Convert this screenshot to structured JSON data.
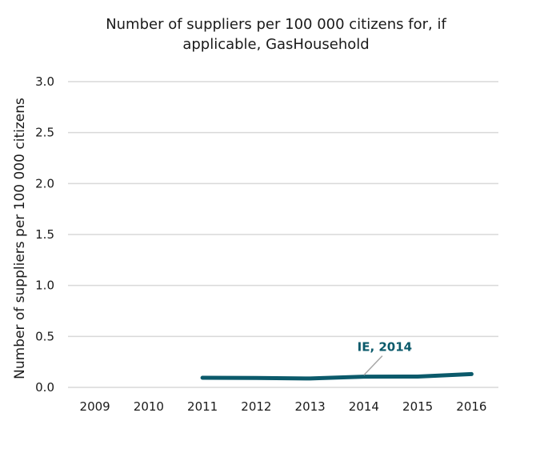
{
  "chart_data": {
    "type": "line",
    "title_lines": [
      "Number of suppliers per 100 000 citizens for, if",
      "applicable, GasHousehold"
    ],
    "xlabel": "",
    "ylabel": "Number of suppliers per 100 000 citizens",
    "categories": [
      "2009",
      "2010",
      "2011",
      "2012",
      "2013",
      "2014",
      "2015",
      "2016"
    ],
    "ylim": [
      0,
      3.0
    ],
    "yticks": [
      "0.0",
      "0.5",
      "1.0",
      "1.5",
      "2.0",
      "2.5",
      "3.0"
    ],
    "ytick_values": [
      0,
      0.5,
      1.0,
      1.5,
      2.0,
      2.5,
      3.0
    ],
    "grid": true,
    "series": [
      {
        "name": "IE",
        "color": "#0b5a6b",
        "values": [
          null,
          null,
          0.094,
          0.092,
          0.087,
          0.105,
          0.106,
          0.13
        ]
      }
    ],
    "annotations": [
      {
        "text": "IE, 2014",
        "series": "IE",
        "category": "2014",
        "color": "#0b5a6b"
      }
    ],
    "colors": {
      "grid": "#d9d9d9",
      "leader_line": "#a6a6a6"
    }
  }
}
